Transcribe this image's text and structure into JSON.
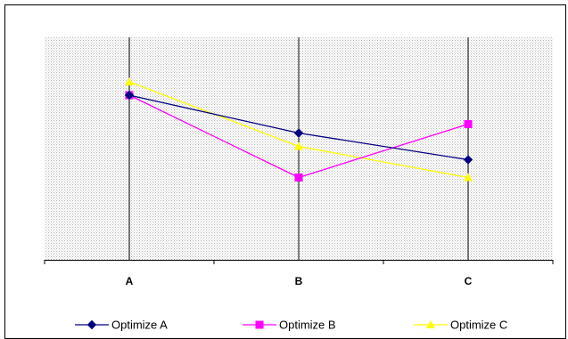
{
  "chart_data": {
    "type": "line",
    "categories": [
      "A",
      "B",
      "C"
    ],
    "series": [
      {
        "name": "Optimize A",
        "values": [
          0.74,
          0.57,
          0.45
        ],
        "color": "#000080",
        "marker": "diamond"
      },
      {
        "name": "Optimize B",
        "values": [
          0.74,
          0.37,
          0.61
        ],
        "color": "#ff00ff",
        "marker": "square"
      },
      {
        "name": "Optimize C",
        "values": [
          0.8,
          0.51,
          0.37
        ],
        "color": "#ffff00",
        "marker": "triangle"
      }
    ],
    "ylim": [
      0,
      1
    ],
    "grid": "vertical lines at categories",
    "legend": "bottom",
    "plot_fill": "#e8e8e8"
  }
}
